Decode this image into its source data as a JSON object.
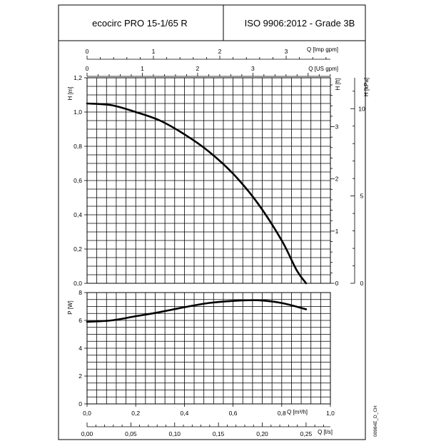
{
  "header": {
    "product": "ecocirc PRO 15-1/65 R",
    "standard": "ISO 9906:2012 - Grade 3B"
  },
  "document_code": "00984E_D_CH",
  "chart_data": [
    {
      "type": "line",
      "name": "head-curve",
      "x_unit": "Q [m³/h]",
      "ylabel": "H [m]",
      "xlim": [
        0,
        1.0
      ],
      "ylim": [
        0,
        1.2
      ],
      "grid": true,
      "x": [
        0.0,
        0.1,
        0.2,
        0.3,
        0.4,
        0.5,
        0.6,
        0.7,
        0.8,
        0.86,
        0.9
      ],
      "y": [
        1.05,
        1.04,
        1.0,
        0.95,
        0.87,
        0.77,
        0.64,
        0.47,
        0.25,
        0.08,
        0.0
      ],
      "ylabel_secondary": [
        "H [ft]",
        "H [kPa]"
      ],
      "secondary_ticks": {
        "ft": [
          "0",
          "1",
          "2",
          "3"
        ],
        "kpa": [
          "0",
          "5",
          "10"
        ]
      },
      "top_axes": {
        "imp_gpm_label": "Q [Imp gpm]",
        "imp_gpm_ticks": [
          "0",
          "1",
          "2",
          "3"
        ],
        "us_gpm_label": "Q [US gpm]",
        "us_gpm_ticks": [
          "0",
          "1",
          "2",
          "3"
        ]
      },
      "y_ticks": [
        "0,0",
        "0,2",
        "0,4",
        "0,6",
        "0,8",
        "1,0",
        "1,2"
      ]
    },
    {
      "type": "line",
      "name": "power-curve",
      "ylabel": "P [W]",
      "xlim": [
        0,
        1.0
      ],
      "ylim": [
        0,
        8
      ],
      "grid": true,
      "x": [
        0.0,
        0.1,
        0.2,
        0.3,
        0.4,
        0.5,
        0.6,
        0.7,
        0.8,
        0.9
      ],
      "y": [
        5.9,
        6.0,
        6.3,
        6.6,
        6.95,
        7.25,
        7.4,
        7.45,
        7.25,
        6.8
      ],
      "y_ticks": [
        "0",
        "2",
        "4",
        "6",
        "8"
      ],
      "x_ticks_m3h": [
        "0,0",
        "0,2",
        "0,4",
        "0,6",
        "0,8",
        "1,0"
      ],
      "x_label_m3h": "Q [m³/h]",
      "x_ticks_ls": [
        "0,00",
        "0,05",
        "0,10",
        "0,15",
        "0,20",
        "0,25"
      ],
      "x_label_ls": "Q [l/s]"
    }
  ]
}
